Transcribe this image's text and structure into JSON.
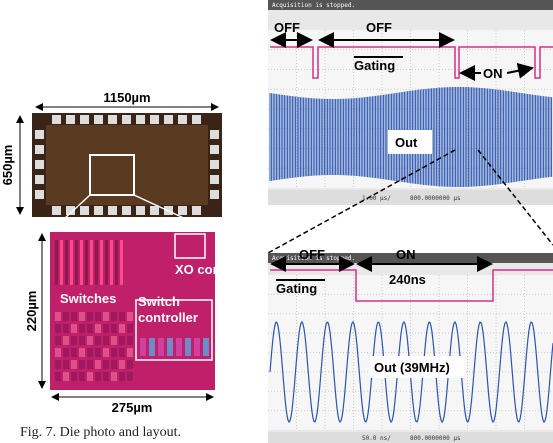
{
  "die_photo": {
    "width_label": "1150µm",
    "height_label": "650µm"
  },
  "layout": {
    "width_label": "275µm",
    "height_label": "220µm",
    "blocks": [
      "XO core",
      "Switches",
      "Switch controller"
    ]
  },
  "caption": "Fig. 7. Die photo and layout.",
  "scope_top": {
    "status": "Acquisition is stopped.",
    "off_1": "OFF",
    "off_2": "OFF",
    "gating": "Gating",
    "on": "ON",
    "out": "Out",
    "timebase": "1.00 µs/",
    "position": "800.0000000 µs"
  },
  "scope_bottom": {
    "status": "Acquisition is stopped.",
    "off": "OFF",
    "on": "ON",
    "duration": "240ns",
    "gating": "Gating",
    "out": "Out (39MHz)",
    "timebase": "50.0 ns/",
    "position": "800.0000000 µs"
  }
}
